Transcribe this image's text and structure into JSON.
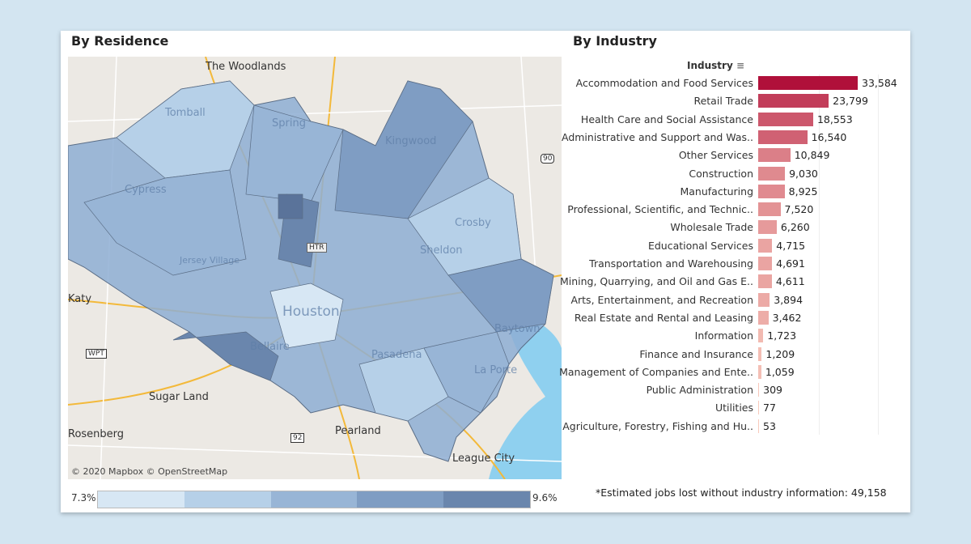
{
  "titles": {
    "left": "By Residence",
    "right": "By Industry"
  },
  "map": {
    "attribution": "© 2020 Mapbox  © OpenStreetMap",
    "places": [
      "The Woodlands",
      "Tomball",
      "Spring",
      "Kingwood",
      "Cypress",
      "Crosby",
      "Jersey Village",
      "Sheldon",
      "Houston",
      "Katy",
      "Baytown",
      "Bellaire",
      "Pasadena",
      "La Porte",
      "Sugar Land",
      "Pearland",
      "Rosenberg",
      "League City"
    ],
    "shields": [
      "90",
      "HTR",
      "WPT",
      "92"
    ],
    "legend": {
      "min": "7.3%",
      "max": "9.6%",
      "colors": [
        "#d7e7f4",
        "#b6d0e8",
        "#98b5d6",
        "#7f9dc3",
        "#6a86ad"
      ]
    }
  },
  "chart_data": {
    "type": "bar",
    "title": "By Industry",
    "ylabel": "Industry",
    "categories": [
      "Accommodation and Food Services",
      "Retail Trade",
      "Health Care and Social Assistance",
      "Administrative and Support and Was..",
      "Other Services",
      "Construction",
      "Manufacturing",
      "Professional, Scientific, and Technic..",
      "Wholesale Trade",
      "Educational Services",
      "Transportation and Warehousing",
      "Mining, Quarrying, and Oil and Gas E..",
      "Arts, Entertainment, and Recreation",
      "Real Estate and Rental and Leasing",
      "Information",
      "Finance and Insurance",
      "Management of Companies and Ente..",
      "Public Administration",
      "Utilities",
      "Agriculture, Forestry, Fishing and Hu.."
    ],
    "values": [
      33584,
      23799,
      18553,
      16540,
      10849,
      9030,
      8925,
      7520,
      6260,
      4715,
      4691,
      4611,
      3894,
      3462,
      1723,
      1209,
      1059,
      309,
      77,
      53
    ],
    "value_labels": [
      "33,584",
      "23,799",
      "18,553",
      "16,540",
      "10,849",
      "9,030",
      "8,925",
      "7,520",
      "6,260",
      "4,715",
      "4,691",
      "4,611",
      "3,894",
      "3,462",
      "1,723",
      "1,209",
      "1,059",
      "309",
      "77",
      "53"
    ],
    "color_low": "#f9cbbd",
    "color_high": "#b0103a"
  },
  "footnote": "*Estimated jobs lost without industry information: 49,158"
}
